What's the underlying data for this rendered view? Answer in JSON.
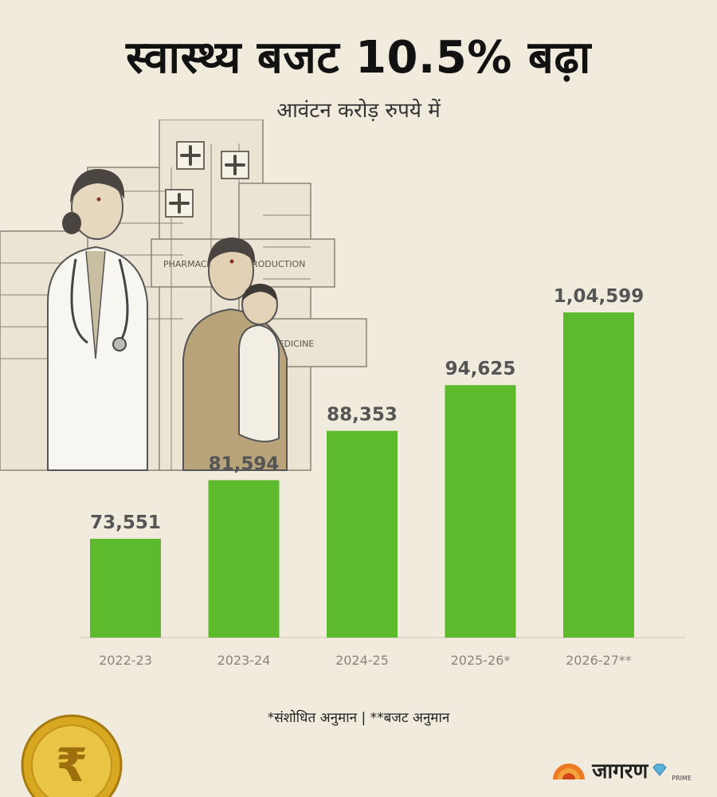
{
  "header": {
    "title": "स्वास्थ्य बजट 10.5% बढ़ा",
    "subtitle": "आवंटन करोड़ रुपये में"
  },
  "chart_data": {
    "type": "bar",
    "title": "स्वास्थ्य बजट 10.5% बढ़ा",
    "subtitle": "आवंटन करोड़ रुपये में",
    "categories": [
      "2022-23",
      "2023-24",
      "2024-25",
      "2025-26*",
      "2026-27**"
    ],
    "values": [
      73551,
      81594,
      88353,
      94625,
      104599
    ],
    "data_labels": [
      "73,551",
      "81,594",
      "88,353",
      "94,625",
      "1,04,599"
    ],
    "bar_color": "#5cba2c",
    "ylim": [
      60000,
      106000
    ],
    "grid": false,
    "legend": "none"
  },
  "footnote": "*संशोधित अनुमान | **बजट अनुमान",
  "illustration": {
    "text": "PHARMACEUTICAL PRODUCTION",
    "sign": "MEDICINE"
  },
  "coin": {
    "symbol": "₹"
  },
  "brand": {
    "name": "जागरण",
    "sub": "PRIME"
  }
}
